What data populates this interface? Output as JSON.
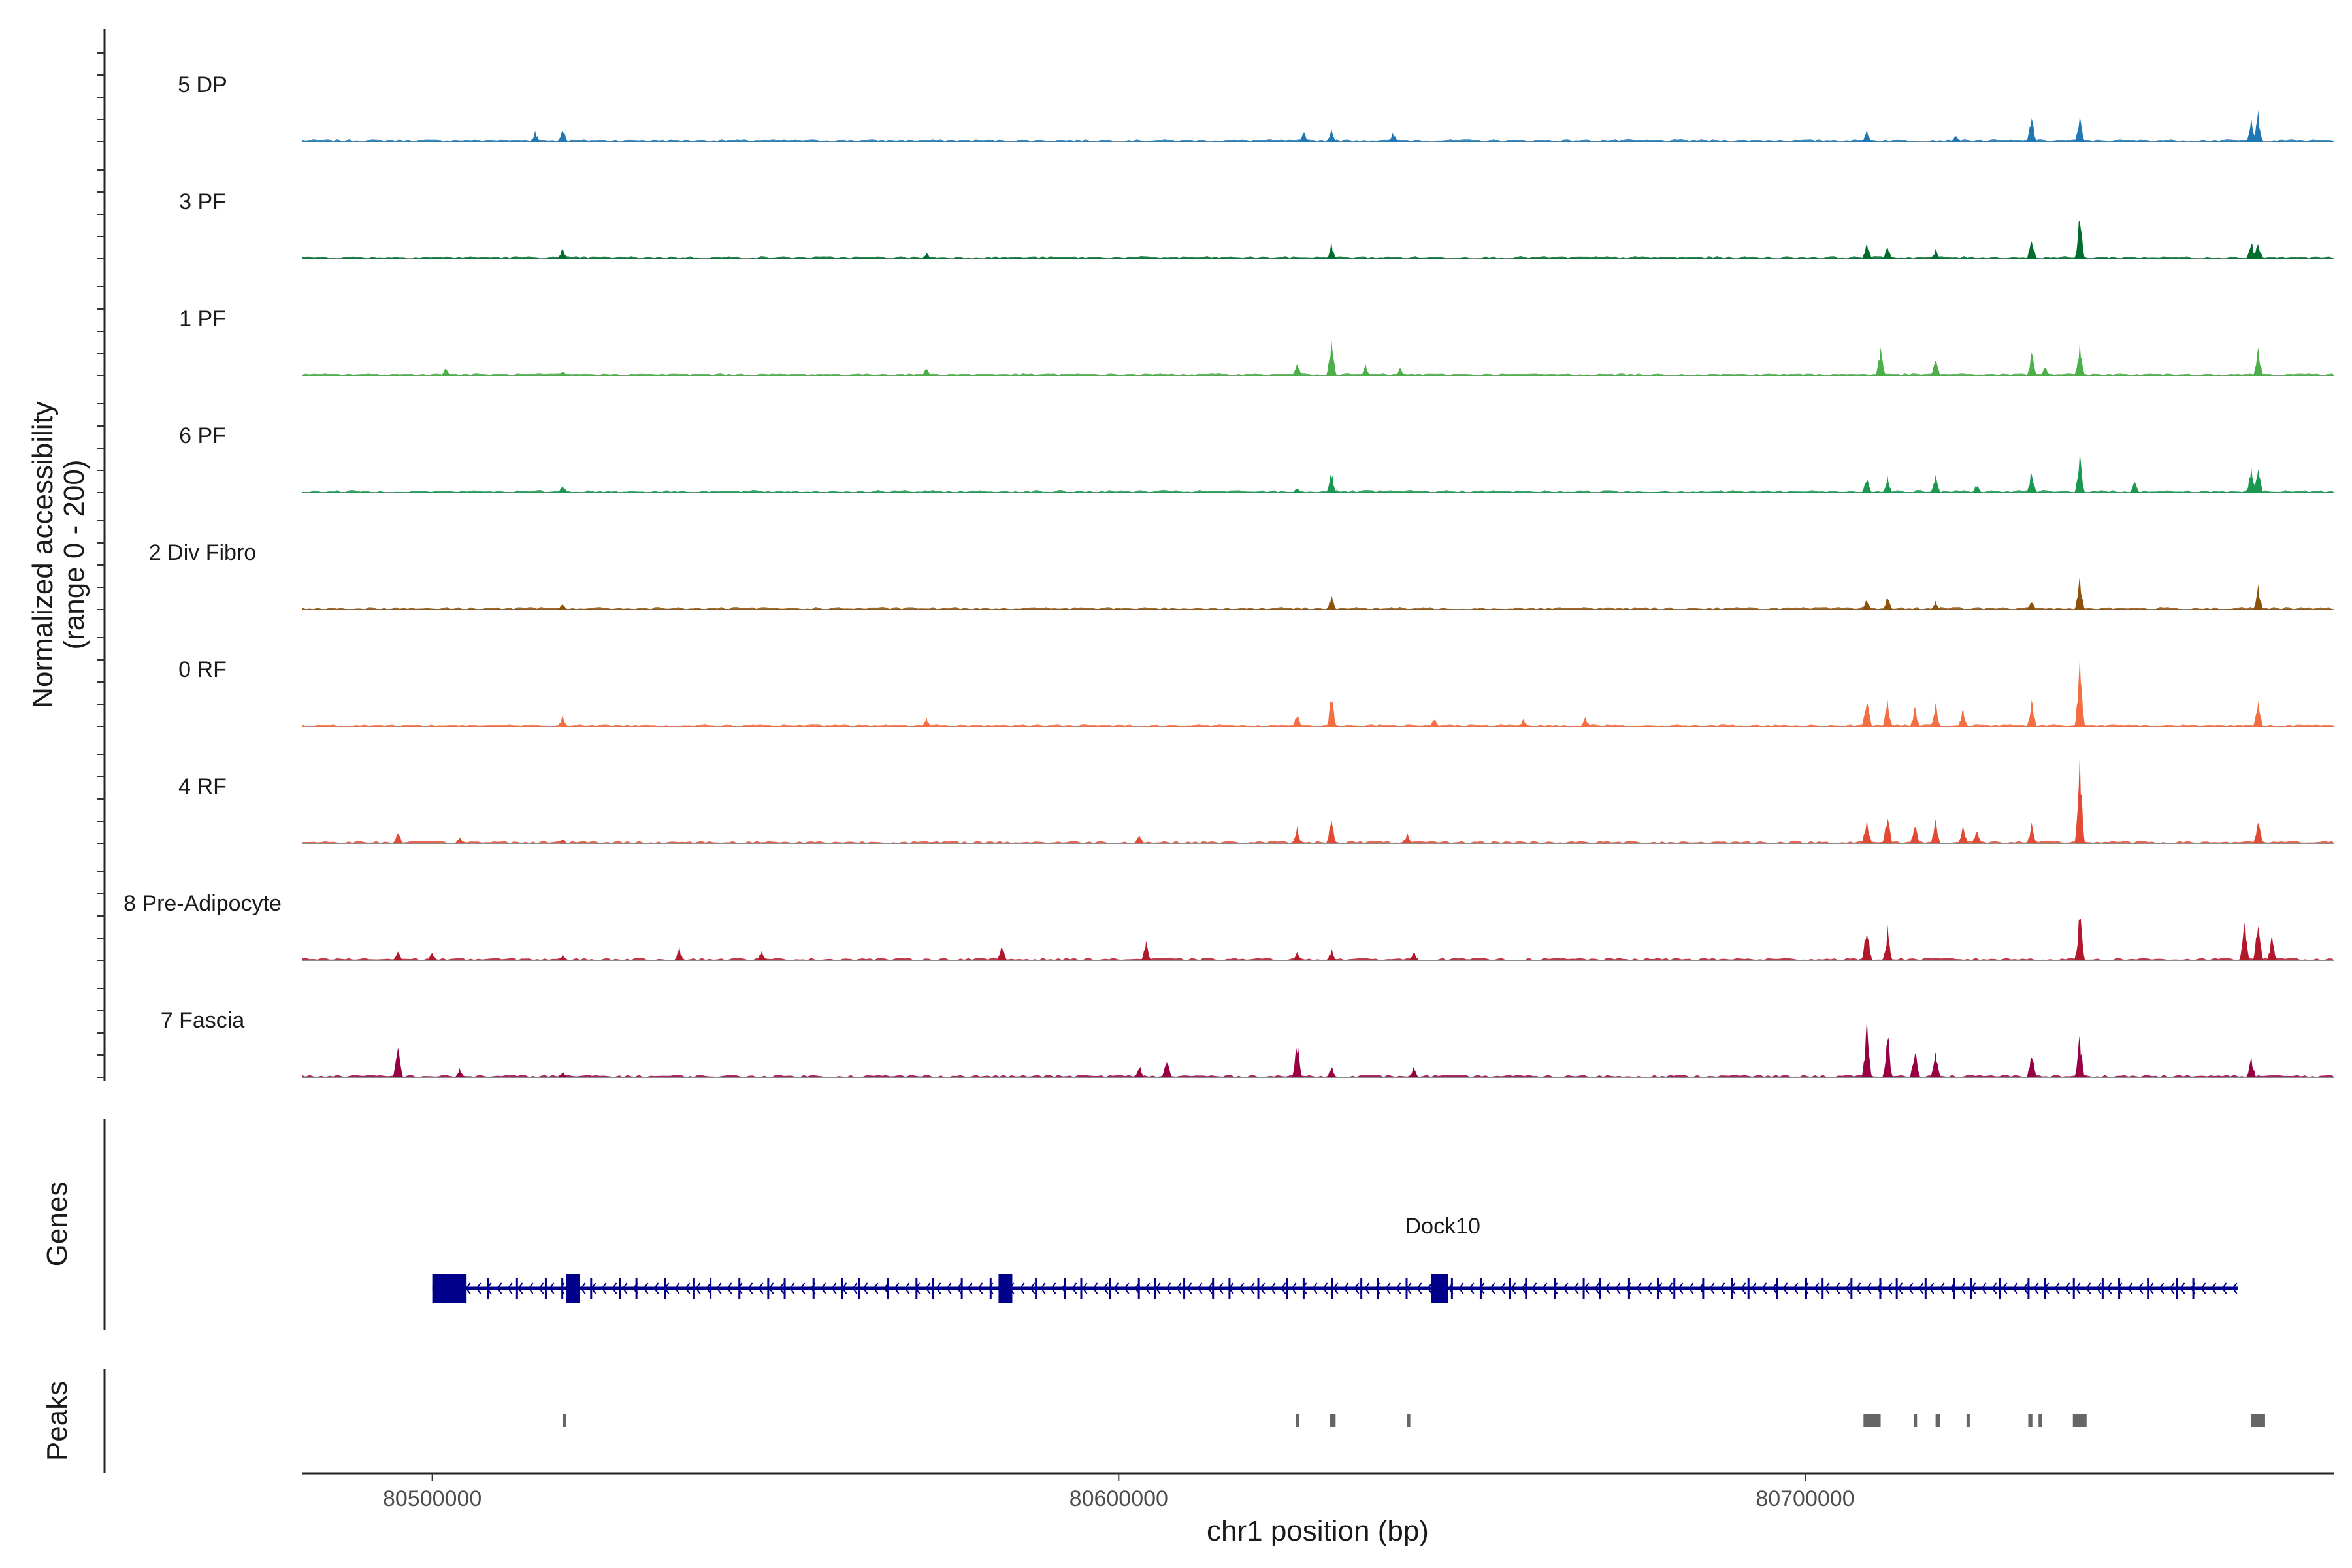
{
  "chart_data": {
    "type": "coverage-track",
    "chromosome": "chr1",
    "region": [
      80481000,
      80777000
    ],
    "xlabel": "chr1 position (bp)",
    "x_ticks": [
      80500000,
      80600000,
      80700000
    ],
    "ylabel": "Normalized accessibility\n(range 0 - 200)",
    "ylim": [
      0,
      200
    ],
    "series": [
      {
        "name": "5 DP",
        "color": "#1f78b4",
        "peaks": [
          [
            80515000,
            10
          ],
          [
            80519000,
            14
          ],
          [
            80627000,
            11
          ],
          [
            80631000,
            13
          ],
          [
            80640000,
            10
          ],
          [
            80709000,
            11
          ],
          [
            80722000,
            8
          ],
          [
            80733000,
            26
          ],
          [
            80740000,
            30
          ],
          [
            80765000,
            22
          ],
          [
            80766000,
            28
          ]
        ]
      },
      {
        "name": "3 PF",
        "color": "#006d2c",
        "peaks": [
          [
            80519000,
            10
          ],
          [
            80572000,
            6
          ],
          [
            80631000,
            13
          ],
          [
            80709000,
            15
          ],
          [
            80712000,
            12
          ],
          [
            80719000,
            9
          ],
          [
            80733000,
            20
          ],
          [
            80740000,
            42
          ],
          [
            80765000,
            18
          ],
          [
            80766000,
            16
          ]
        ]
      },
      {
        "name": "1 PF",
        "color": "#4daf4a",
        "peaks": [
          [
            80502000,
            8
          ],
          [
            80519000,
            5
          ],
          [
            80572000,
            7
          ],
          [
            80626000,
            12
          ],
          [
            80631000,
            36
          ],
          [
            80636000,
            10
          ],
          [
            80641000,
            8
          ],
          [
            80711000,
            28
          ],
          [
            80719000,
            16
          ],
          [
            80733000,
            22
          ],
          [
            80735000,
            10
          ],
          [
            80740000,
            32
          ],
          [
            80766000,
            28
          ]
        ]
      },
      {
        "name": "6 PF",
        "color": "#1a9850",
        "peaks": [
          [
            80519000,
            8
          ],
          [
            80626000,
            5
          ],
          [
            80631000,
            20
          ],
          [
            80709000,
            16
          ],
          [
            80712000,
            14
          ],
          [
            80719000,
            15
          ],
          [
            80725000,
            8
          ],
          [
            80733000,
            22
          ],
          [
            80740000,
            36
          ],
          [
            80748000,
            10
          ],
          [
            80765000,
            28
          ],
          [
            80766000,
            24
          ]
        ]
      },
      {
        "name": "2 Div Fibro",
        "color": "#8c510a",
        "peaks": [
          [
            80519000,
            6
          ],
          [
            80631000,
            14
          ],
          [
            80709000,
            10
          ],
          [
            80712000,
            12
          ],
          [
            80719000,
            8
          ],
          [
            80733000,
            10
          ],
          [
            80740000,
            30
          ],
          [
            80766000,
            22
          ]
        ]
      },
      {
        "name": "0 RF",
        "color": "#f46d43",
        "peaks": [
          [
            80519000,
            12
          ],
          [
            80572000,
            8
          ],
          [
            80626000,
            14
          ],
          [
            80631000,
            30
          ],
          [
            80646000,
            8
          ],
          [
            80659000,
            8
          ],
          [
            80668000,
            10
          ],
          [
            80709000,
            30
          ],
          [
            80712000,
            24
          ],
          [
            80716000,
            18
          ],
          [
            80719000,
            22
          ],
          [
            80723000,
            16
          ],
          [
            80733000,
            26
          ],
          [
            80740000,
            66
          ],
          [
            80766000,
            26
          ]
        ]
      },
      {
        "name": "4 RF",
        "color": "#e34a33",
        "peaks": [
          [
            80495000,
            14
          ],
          [
            80504000,
            6
          ],
          [
            80519000,
            5
          ],
          [
            80603000,
            10
          ],
          [
            80626000,
            14
          ],
          [
            80631000,
            28
          ],
          [
            80642000,
            10
          ],
          [
            80709000,
            26
          ],
          [
            80712000,
            30
          ],
          [
            80716000,
            20
          ],
          [
            80719000,
            22
          ],
          [
            80723000,
            18
          ],
          [
            80725000,
            14
          ],
          [
            80733000,
            18
          ],
          [
            80740000,
            86
          ],
          [
            80766000,
            22
          ]
        ]
      },
      {
        "name": "8 Pre-Adipocyte",
        "color": "#b2182b",
        "peaks": [
          [
            80495000,
            10
          ],
          [
            80500000,
            8
          ],
          [
            80519000,
            5
          ],
          [
            80536000,
            12
          ],
          [
            80548000,
            10
          ],
          [
            80583000,
            14
          ],
          [
            80604000,
            18
          ],
          [
            80626000,
            8
          ],
          [
            80631000,
            10
          ],
          [
            80643000,
            8
          ],
          [
            80709000,
            40
          ],
          [
            80712000,
            30
          ],
          [
            80740000,
            48
          ],
          [
            80764000,
            36
          ],
          [
            80766000,
            40
          ],
          [
            80768000,
            22
          ]
        ]
      },
      {
        "name": "7 Fascia",
        "color": "#980043",
        "peaks": [
          [
            80495000,
            36
          ],
          [
            80504000,
            8
          ],
          [
            80519000,
            6
          ],
          [
            80603000,
            12
          ],
          [
            80607000,
            20
          ],
          [
            80626000,
            34
          ],
          [
            80631000,
            10
          ],
          [
            80643000,
            10
          ],
          [
            80709000,
            48
          ],
          [
            80712000,
            44
          ],
          [
            80716000,
            30
          ],
          [
            80719000,
            24
          ],
          [
            80733000,
            28
          ],
          [
            80740000,
            40
          ],
          [
            80765000,
            20
          ]
        ]
      }
    ],
    "gene": {
      "name": "Dock10",
      "strand": "-",
      "color": "#00008b",
      "start": 80500000,
      "end": 80763000,
      "exons": [
        [
          80500000,
          80505000
        ],
        [
          80519500,
          80521500
        ],
        [
          80582500,
          80584500
        ],
        [
          80645500,
          80648000
        ]
      ]
    },
    "peaks_track": {
      "color": "#666666",
      "regions": [
        [
          80519000,
          80519500
        ],
        [
          80625800,
          80626300
        ],
        [
          80630800,
          80631600
        ],
        [
          80642000,
          80642400
        ],
        [
          80708500,
          80711000
        ],
        [
          80715800,
          80716300
        ],
        [
          80719000,
          80719700
        ],
        [
          80723500,
          80723900
        ],
        [
          80732500,
          80733100
        ],
        [
          80734000,
          80734500
        ],
        [
          80739000,
          80741000
        ],
        [
          80765000,
          80767000
        ]
      ]
    },
    "panels": [
      "Genes",
      "Peaks"
    ]
  }
}
